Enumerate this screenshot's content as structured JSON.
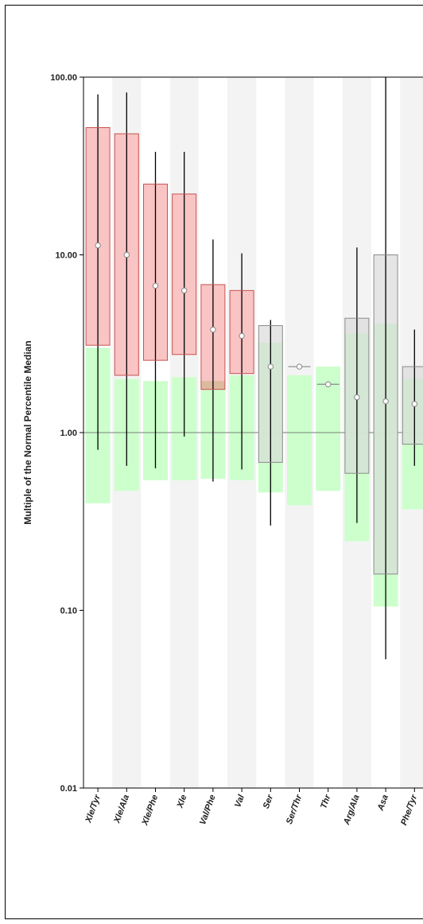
{
  "chart_data": {
    "type": "boxplot",
    "title": "",
    "xlabel": "",
    "ylabel": "Multiple of the Normal Percentile Median",
    "yscale": "log",
    "ylim": [
      0.01,
      100
    ],
    "yticks": [
      {
        "value": 0.01,
        "label": "0.01"
      },
      {
        "value": 0.1,
        "label": "0.10"
      },
      {
        "value": 1,
        "label": "1.00"
      },
      {
        "value": 10,
        "label": "10.00"
      },
      {
        "value": 100,
        "label": "100.00"
      }
    ],
    "reference_line": 1,
    "colors": {
      "elevated_fill": "#f9c4c4",
      "elevated_stroke": "#c85050",
      "neutral_fill": "#dcdcdc",
      "neutral_stroke": "#8a8a8a",
      "normal_range": "#ccffcc",
      "column_band": "#f3f3f3",
      "overlap": "#d9b99a"
    },
    "categories": [
      {
        "label": "Xle/Tyr",
        "state": "elevated",
        "whisker_low": 0.8,
        "q1": 3.1,
        "median": 11.3,
        "q3": 52,
        "whisker_high": 80,
        "normal_low": 0.4,
        "normal_high": 3.0
      },
      {
        "label": "Xle/Ala",
        "state": "elevated",
        "whisker_low": 0.65,
        "q1": 2.1,
        "median": 10.0,
        "q3": 48,
        "whisker_high": 82,
        "normal_low": 0.47,
        "normal_high": 2.0
      },
      {
        "label": "Xle/Phe",
        "state": "elevated",
        "whisker_low": 0.63,
        "q1": 2.55,
        "median": 6.7,
        "q3": 25,
        "whisker_high": 38,
        "normal_low": 0.54,
        "normal_high": 1.95
      },
      {
        "label": "Xle",
        "state": "elevated",
        "whisker_low": 0.95,
        "q1": 2.75,
        "median": 6.3,
        "q3": 22,
        "whisker_high": 38,
        "normal_low": 0.54,
        "normal_high": 2.05
      },
      {
        "label": "Val/Phe",
        "state": "elevated",
        "whisker_low": 0.53,
        "q1": 1.75,
        "median": 3.8,
        "q3": 6.8,
        "whisker_high": 12.2,
        "normal_low": 0.55,
        "normal_high": 1.95
      },
      {
        "label": "Val",
        "state": "elevated",
        "whisker_low": 0.62,
        "q1": 2.15,
        "median": 3.5,
        "q3": 6.3,
        "whisker_high": 10.2,
        "normal_low": 0.54,
        "normal_high": 2.1
      },
      {
        "label": "Ser",
        "state": "neutral",
        "whisker_low": 0.3,
        "q1": 0.68,
        "median": 2.35,
        "q3": 4.0,
        "whisker_high": 4.3,
        "normal_low": 0.46,
        "normal_high": 3.2
      },
      {
        "label": "Ser/Thr",
        "state": "point",
        "median": 2.35,
        "normal_low": 0.39,
        "normal_high": 2.1
      },
      {
        "label": "Thr",
        "state": "point",
        "median": 1.87,
        "normal_low": 0.47,
        "normal_high": 2.35
      },
      {
        "label": "Arg/Ala",
        "state": "neutral",
        "whisker_low": 0.31,
        "q1": 0.59,
        "median": 1.58,
        "q3": 4.4,
        "whisker_high": 11.0,
        "normal_low": 0.245,
        "normal_high": 3.6
      },
      {
        "label": "Asa",
        "state": "neutral",
        "whisker_low": 0.053,
        "q1": 0.16,
        "median": 1.5,
        "q3": 10.0,
        "whisker_high": 100,
        "normal_low": 0.105,
        "normal_high": 4.1
      },
      {
        "label": "Phe/Tyr",
        "state": "neutral",
        "whisker_low": 0.65,
        "q1": 0.86,
        "median": 1.45,
        "q3": 2.35,
        "whisker_high": 3.8,
        "normal_low": 0.37,
        "normal_high": 2.0
      }
    ]
  }
}
